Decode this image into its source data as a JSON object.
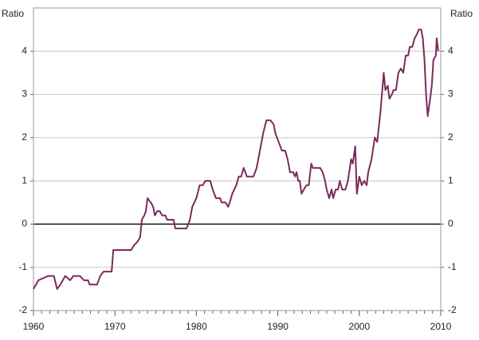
{
  "chart_data": {
    "type": "line",
    "ylabel": "Ratio",
    "x": [
      1960.0,
      1960.6,
      1961.8,
      1962.5,
      1962.9,
      1963.3,
      1963.9,
      1964.5,
      1964.9,
      1965.7,
      1966.2,
      1966.7,
      1966.9,
      1967.8,
      1968.2,
      1968.6,
      1969.6,
      1969.8,
      1972.0,
      1972.3,
      1972.8,
      1973.1,
      1973.3,
      1973.6,
      1973.8,
      1974.0,
      1974.4,
      1974.7,
      1974.9,
      1975.2,
      1975.5,
      1975.8,
      1976.2,
      1976.4,
      1977.2,
      1977.4,
      1978.8,
      1979.2,
      1979.5,
      1980.0,
      1980.4,
      1980.8,
      1981.1,
      1981.7,
      1982.0,
      1982.4,
      1982.9,
      1983.1,
      1983.6,
      1983.9,
      1984.1,
      1984.4,
      1984.9,
      1985.2,
      1985.5,
      1985.8,
      1986.2,
      1987.0,
      1987.4,
      1987.8,
      1988.2,
      1988.6,
      1989.1,
      1989.5,
      1989.7,
      1990.1,
      1990.5,
      1990.9,
      1991.2,
      1991.5,
      1991.9,
      1992.1,
      1992.3,
      1992.5,
      1992.7,
      1992.9,
      1993.2,
      1993.5,
      1993.8,
      1994.1,
      1994.3,
      1995.2,
      1995.5,
      1995.8,
      1996.0,
      1996.3,
      1996.6,
      1996.8,
      1997.1,
      1997.4,
      1997.6,
      1997.9,
      1998.3,
      1998.6,
      1999.0,
      1999.2,
      1999.5,
      1999.7,
      2000.0,
      2000.3,
      2000.6,
      2000.9,
      2001.1,
      2001.5,
      2001.9,
      2002.2,
      2002.6,
      2003.0,
      2003.2,
      2003.5,
      2003.7,
      2004.0,
      2004.2,
      2004.5,
      2004.8,
      2005.1,
      2005.4,
      2005.7,
      2006.0,
      2006.2,
      2006.5,
      2006.8,
      2007.1,
      2007.3,
      2007.6,
      2007.8,
      2008.0,
      2008.2,
      2008.4,
      2008.7,
      2008.9,
      2009.1,
      2009.4,
      2009.5,
      2009.7
    ],
    "series": [
      {
        "color": "#7b2a5c",
        "values": [
          -1.5,
          -1.3,
          -1.2,
          -1.2,
          -1.5,
          -1.4,
          -1.2,
          -1.3,
          -1.2,
          -1.2,
          -1.3,
          -1.3,
          -1.4,
          -1.4,
          -1.2,
          -1.1,
          -1.1,
          -0.6,
          -0.6,
          -0.5,
          -0.4,
          -0.3,
          0.1,
          0.2,
          0.3,
          0.6,
          0.5,
          0.4,
          0.2,
          0.3,
          0.3,
          0.2,
          0.2,
          0.1,
          0.1,
          -0.1,
          -0.1,
          0.1,
          0.4,
          0.6,
          0.9,
          0.9,
          1.0,
          1.0,
          0.8,
          0.6,
          0.6,
          0.5,
          0.5,
          0.4,
          0.5,
          0.7,
          0.9,
          1.1,
          1.1,
          1.3,
          1.1,
          1.1,
          1.3,
          1.7,
          2.1,
          2.4,
          2.4,
          2.3,
          2.1,
          1.9,
          1.7,
          1.7,
          1.5,
          1.2,
          1.2,
          1.1,
          1.2,
          1.0,
          1.0,
          0.7,
          0.8,
          0.9,
          0.9,
          1.4,
          1.3,
          1.3,
          1.2,
          1.0,
          0.8,
          0.6,
          0.8,
          0.6,
          0.8,
          0.8,
          1.0,
          0.8,
          0.8,
          1.0,
          1.5,
          1.4,
          1.8,
          0.7,
          1.1,
          0.9,
          1.0,
          0.9,
          1.2,
          1.5,
          2.0,
          1.9,
          2.6,
          3.5,
          3.1,
          3.2,
          2.9,
          3.0,
          3.1,
          3.1,
          3.5,
          3.6,
          3.5,
          3.9,
          3.9,
          4.1,
          4.1,
          4.3,
          4.4,
          4.5,
          4.5,
          4.3,
          3.8,
          3.0,
          2.5,
          2.9,
          3.2,
          3.8,
          3.9,
          4.3,
          4.0
        ]
      }
    ],
    "xlim": [
      1960,
      2010
    ],
    "xticks": [
      1960,
      1970,
      1980,
      1990,
      2000,
      2010
    ],
    "ylim": [
      -2,
      5
    ],
    "yticks": [
      -2,
      -1,
      0,
      1,
      2,
      3,
      4
    ],
    "grid": true,
    "zero_line": true
  }
}
